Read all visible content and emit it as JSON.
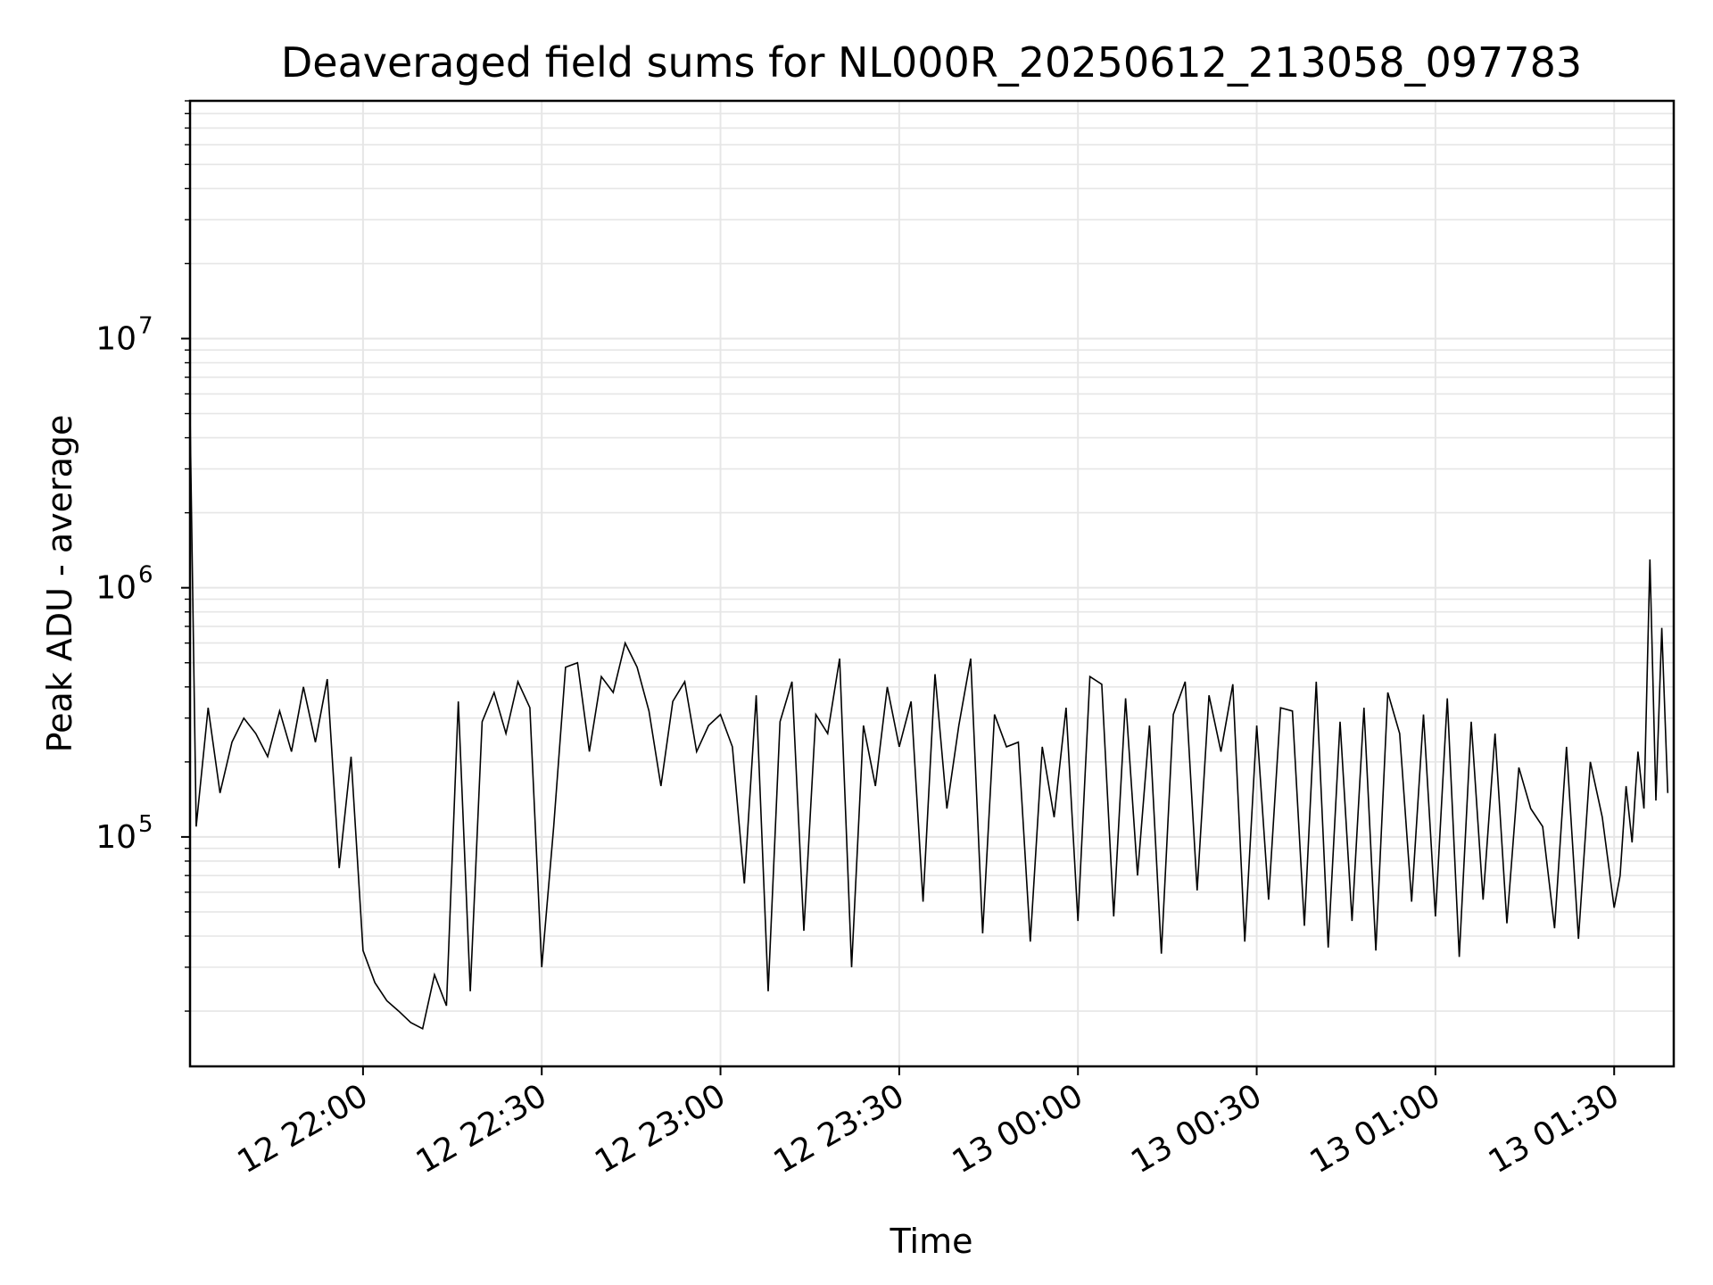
{
  "chart_data": {
    "type": "line",
    "title": "Deaveraged field sums for NL000R_20250612_213058_097783",
    "xlabel": "Time",
    "ylabel": "Peak ADU - average",
    "yscale": "log",
    "ylim": [
      12000,
      90000000
    ],
    "xlim": [
      "2025-06-12 21:30:58",
      "2025-06-13 01:40:00"
    ],
    "grid": true,
    "line_color": "#000000",
    "grid_color": "#e6e6e6",
    "x_ticks": [
      "2025-06-12 22:00",
      "2025-06-12 22:30",
      "2025-06-12 23:00",
      "2025-06-12 23:30",
      "2025-06-13 00:00",
      "2025-06-13 00:30",
      "2025-06-13 01:00",
      "2025-06-13 01:30"
    ],
    "x_tick_labels": [
      "12 22:00",
      "12 22:30",
      "12 23:00",
      "12 23:30",
      "13 00:00",
      "13 00:30",
      "13 01:00",
      "13 01:30"
    ],
    "y_ticks": [
      100000,
      1000000,
      10000000
    ],
    "y_tick_labels": [
      {
        "base": "10",
        "exp": "5"
      },
      {
        "base": "10",
        "exp": "6"
      },
      {
        "base": "10",
        "exp": "7"
      }
    ],
    "series": [
      {
        "x": [
          "2025-06-12 21:30:58",
          "2025-06-12 21:32:00",
          "2025-06-12 21:34:00",
          "2025-06-12 21:36:00",
          "2025-06-12 21:38:00",
          "2025-06-12 21:40:00",
          "2025-06-12 21:42:00",
          "2025-06-12 21:44:00",
          "2025-06-12 21:46:00",
          "2025-06-12 21:48:00",
          "2025-06-12 21:50:00",
          "2025-06-12 21:52:00",
          "2025-06-12 21:54:00",
          "2025-06-12 21:56:00",
          "2025-06-12 21:58:00",
          "2025-06-12 22:00:00",
          "2025-06-12 22:02:00",
          "2025-06-12 22:04:00",
          "2025-06-12 22:06:00",
          "2025-06-12 22:08:00",
          "2025-06-12 22:10:00",
          "2025-06-12 22:12:00",
          "2025-06-12 22:14:00",
          "2025-06-12 22:16:00",
          "2025-06-12 22:18:00",
          "2025-06-12 22:20:00",
          "2025-06-12 22:22:00",
          "2025-06-12 22:24:00",
          "2025-06-12 22:26:00",
          "2025-06-12 22:28:00",
          "2025-06-12 22:30:00",
          "2025-06-12 22:32:00",
          "2025-06-12 22:34:00",
          "2025-06-12 22:36:00",
          "2025-06-12 22:38:00",
          "2025-06-12 22:40:00",
          "2025-06-12 22:42:00",
          "2025-06-12 22:44:00",
          "2025-06-12 22:46:00",
          "2025-06-12 22:48:00",
          "2025-06-12 22:50:00",
          "2025-06-12 22:52:00",
          "2025-06-12 22:54:00",
          "2025-06-12 22:56:00",
          "2025-06-12 22:58:00",
          "2025-06-12 23:00:00",
          "2025-06-12 23:02:00",
          "2025-06-12 23:04:00",
          "2025-06-12 23:06:00",
          "2025-06-12 23:08:00",
          "2025-06-12 23:10:00",
          "2025-06-12 23:12:00",
          "2025-06-12 23:14:00",
          "2025-06-12 23:16:00",
          "2025-06-12 23:18:00",
          "2025-06-12 23:20:00",
          "2025-06-12 23:22:00",
          "2025-06-12 23:24:00",
          "2025-06-12 23:26:00",
          "2025-06-12 23:28:00",
          "2025-06-12 23:30:00",
          "2025-06-12 23:32:00",
          "2025-06-12 23:34:00",
          "2025-06-12 23:36:00",
          "2025-06-12 23:38:00",
          "2025-06-12 23:40:00",
          "2025-06-12 23:42:00",
          "2025-06-12 23:44:00",
          "2025-06-12 23:46:00",
          "2025-06-12 23:48:00",
          "2025-06-12 23:50:00",
          "2025-06-12 23:52:00",
          "2025-06-12 23:54:00",
          "2025-06-12 23:56:00",
          "2025-06-12 23:58:00",
          "2025-06-13 00:00:00",
          "2025-06-13 00:02:00",
          "2025-06-13 00:04:00",
          "2025-06-13 00:06:00",
          "2025-06-13 00:08:00",
          "2025-06-13 00:10:00",
          "2025-06-13 00:12:00",
          "2025-06-13 00:14:00",
          "2025-06-13 00:16:00",
          "2025-06-13 00:18:00",
          "2025-06-13 00:20:00",
          "2025-06-13 00:22:00",
          "2025-06-13 00:24:00",
          "2025-06-13 00:26:00",
          "2025-06-13 00:28:00",
          "2025-06-13 00:30:00",
          "2025-06-13 00:32:00",
          "2025-06-13 00:34:00",
          "2025-06-13 00:36:00",
          "2025-06-13 00:38:00",
          "2025-06-13 00:40:00",
          "2025-06-13 00:42:00",
          "2025-06-13 00:44:00",
          "2025-06-13 00:46:00",
          "2025-06-13 00:48:00",
          "2025-06-13 00:50:00",
          "2025-06-13 00:52:00",
          "2025-06-13 00:54:00",
          "2025-06-13 00:56:00",
          "2025-06-13 00:58:00",
          "2025-06-13 01:00:00",
          "2025-06-13 01:02:00",
          "2025-06-13 01:04:00",
          "2025-06-13 01:06:00",
          "2025-06-13 01:08:00",
          "2025-06-13 01:10:00",
          "2025-06-13 01:12:00",
          "2025-06-13 01:14:00",
          "2025-06-13 01:16:00",
          "2025-06-13 01:18:00",
          "2025-06-13 01:20:00",
          "2025-06-13 01:22:00",
          "2025-06-13 01:24:00",
          "2025-06-13 01:26:00",
          "2025-06-13 01:28:00",
          "2025-06-13 01:30:00",
          "2025-06-13 01:31:00",
          "2025-06-13 01:32:00",
          "2025-06-13 01:33:00",
          "2025-06-13 01:34:00",
          "2025-06-13 01:35:00",
          "2025-06-13 01:36:00",
          "2025-06-13 01:37:00",
          "2025-06-13 01:38:00",
          "2025-06-13 01:39:00"
        ],
        "y": [
          5000000,
          110000,
          330000,
          150000,
          240000,
          300000,
          260000,
          210000,
          320000,
          220000,
          400000,
          240000,
          430000,
          75000,
          210000,
          35000,
          26000,
          22000,
          20000,
          18000,
          17000,
          28000,
          21000,
          350000,
          24000,
          290000,
          380000,
          260000,
          420000,
          330000,
          30000,
          110000,
          480000,
          500000,
          220000,
          440000,
          380000,
          600000,
          480000,
          320000,
          160000,
          350000,
          420000,
          220000,
          280000,
          310000,
          230000,
          65000,
          370000,
          24000,
          290000,
          420000,
          42000,
          310000,
          260000,
          520000,
          30000,
          280000,
          160000,
          400000,
          230000,
          350000,
          55000,
          450000,
          130000,
          280000,
          520000,
          41000,
          310000,
          230000,
          240000,
          38000,
          230000,
          120000,
          330000,
          46000,
          440000,
          410000,
          48000,
          360000,
          70000,
          280000,
          34000,
          310000,
          420000,
          61000,
          370000,
          220000,
          410000,
          38000,
          280000,
          56000,
          330000,
          320000,
          44000,
          420000,
          36000,
          290000,
          46000,
          330000,
          35000,
          380000,
          260000,
          55000,
          310000,
          48000,
          360000,
          33000,
          290000,
          56000,
          260000,
          45000,
          190000,
          130000,
          110000,
          43000,
          230000,
          39000,
          200000,
          120000,
          52000,
          70000,
          160000,
          95000,
          220000,
          130000,
          1300000,
          140000,
          690000,
          150000
        ]
      }
    ]
  }
}
